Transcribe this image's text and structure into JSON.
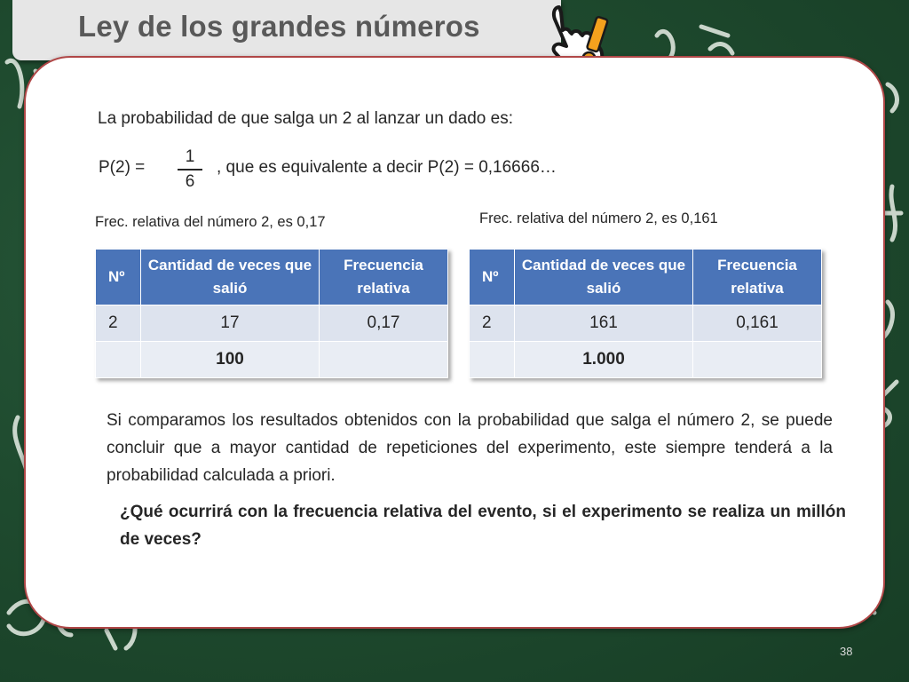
{
  "slide": {
    "title": "Ley de los grandes números",
    "page_number": "38"
  },
  "content": {
    "intro": "La probabilidad de que salga un 2 al lanzar un dado es:",
    "p2_label": "P(2) =",
    "fraction": {
      "numerator": "1",
      "denominator": "6"
    },
    "equivalence": ", que es equivalente a decir  P(2) = 0,16666…",
    "caption_left": "Frec. relativa del número 2, es 0,17",
    "caption_right": "Frec. relativa del número 2, es 0,161",
    "conclusion": "Si comparamos los resultados obtenidos con la probabilidad que salga el número 2, se puede concluir que a mayor cantidad de repeticiones del experimento, este siempre tenderá a la probabilidad calculada a priori.",
    "question": "¿Qué ocurrirá con la frecuencia relativa del evento, si el experimento se realiza un millón de veces?"
  },
  "tables": [
    {
      "headers": [
        "Nº",
        "Cantidad de veces que salió",
        "Frecuencia relativa"
      ],
      "rows": [
        [
          "2",
          "17",
          "0,17"
        ],
        [
          "",
          "100",
          ""
        ]
      ]
    },
    {
      "headers": [
        "Nº",
        "Cantidad de veces que salió",
        "Frecuencia relativa"
      ],
      "rows": [
        [
          "2",
          "161",
          "0,161"
        ],
        [
          "",
          "1.000",
          ""
        ]
      ]
    }
  ],
  "colors": {
    "header_blue": "#4a74b8",
    "cell_light": "#dde3ee",
    "card_border": "#b04747",
    "chalkboard": "#1f4b2f",
    "icon_orange": "#f4a11d"
  },
  "icons": {
    "attention": "pointing-hand-exclamation-icon"
  }
}
